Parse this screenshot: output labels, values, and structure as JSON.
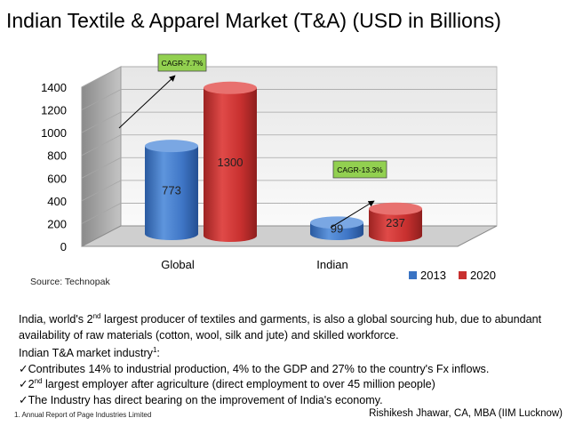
{
  "title": "Indian Textile & Apparel Market (T&A) (USD in Billions)",
  "chart_data": {
    "type": "bar",
    "categories": [
      "Global",
      "Indian"
    ],
    "series": [
      {
        "name": "2013",
        "values": [
          773,
          99
        ],
        "color": "#3a73c3"
      },
      {
        "name": "2020",
        "values": [
          1300,
          237
        ],
        "color": "#c8302f"
      }
    ],
    "ylim": [
      0,
      1400
    ],
    "yticks": [
      0,
      200,
      400,
      600,
      800,
      1000,
      1200,
      1400
    ],
    "legend_position": "bottom-right",
    "annotations": [
      {
        "label": "CAGR-7.7%",
        "category": "Global"
      },
      {
        "label": "CAGR-13.3%",
        "category": "Indian"
      }
    ],
    "grid": true
  },
  "source": "Source: Technopak",
  "paragraph1": {
    "before": "India, world's 2",
    "ordinal": "nd",
    "after": " largest producer of textiles and garments, is also a global sourcing hub, due to abundant availability of raw materials (cotton, wool, silk and jute) and skilled workforce."
  },
  "industry_heading": {
    "text": "Indian T&A market industry",
    "sup": "1",
    "suffix": ":"
  },
  "bullets": [
    {
      "text": "Contributes 14% to industrial production, 4% to the GDP and 27% to the country's Fx inflows."
    },
    {
      "before": "2",
      "ordinal": "nd",
      "after": " largest employer after agriculture (direct employment to over 45 million people)"
    },
    {
      "text": "The Industry has direct bearing on the improvement of India's economy."
    }
  ],
  "bullet_icon": "check-icon",
  "footnote": "1. Annual Report of Page Industries Limited",
  "author": "Rishikesh Jhawar, CA, MBA (IIM Lucknow)",
  "colors": {
    "annotation_box": "#92d050",
    "floor": "#c8c8c8",
    "wall": "#f2f2f2"
  }
}
